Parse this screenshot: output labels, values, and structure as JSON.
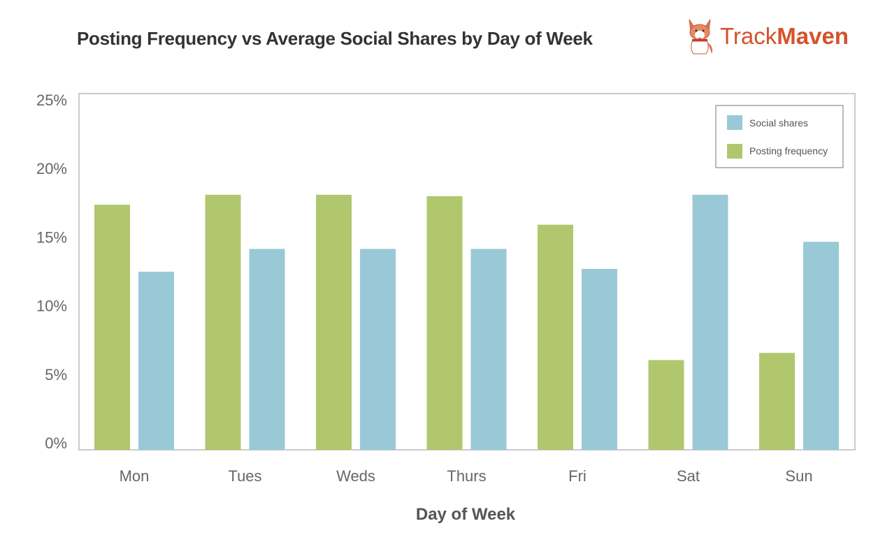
{
  "logo": {
    "text_light": "Track",
    "text_bold": "Maven"
  },
  "chart_data": {
    "type": "bar",
    "title": "Posting Frequency vs Average Social Shares by Day of Week",
    "xlabel": "Day of Week",
    "ylabel": "",
    "categories": [
      "Mon",
      "Tues",
      "Weds",
      "Thurs",
      "Fri",
      "Sat",
      "Sun"
    ],
    "series": [
      {
        "name": "Posting frequency",
        "color": "#b0c76e",
        "values": [
          17.2,
          17.9,
          17.9,
          17.8,
          15.8,
          6.3,
          6.8
        ]
      },
      {
        "name": "Social shares",
        "color": "#99c9d6",
        "values": [
          12.5,
          14.1,
          14.1,
          14.1,
          12.7,
          17.9,
          14.6
        ]
      }
    ],
    "ylim": [
      0,
      25
    ],
    "yticks": [
      "0%",
      "5%",
      "10%",
      "15%",
      "20%",
      "25%"
    ],
    "grid": false,
    "legend": {
      "placement": "top-right",
      "entries": [
        "Social shares",
        "Posting frequency"
      ]
    }
  }
}
